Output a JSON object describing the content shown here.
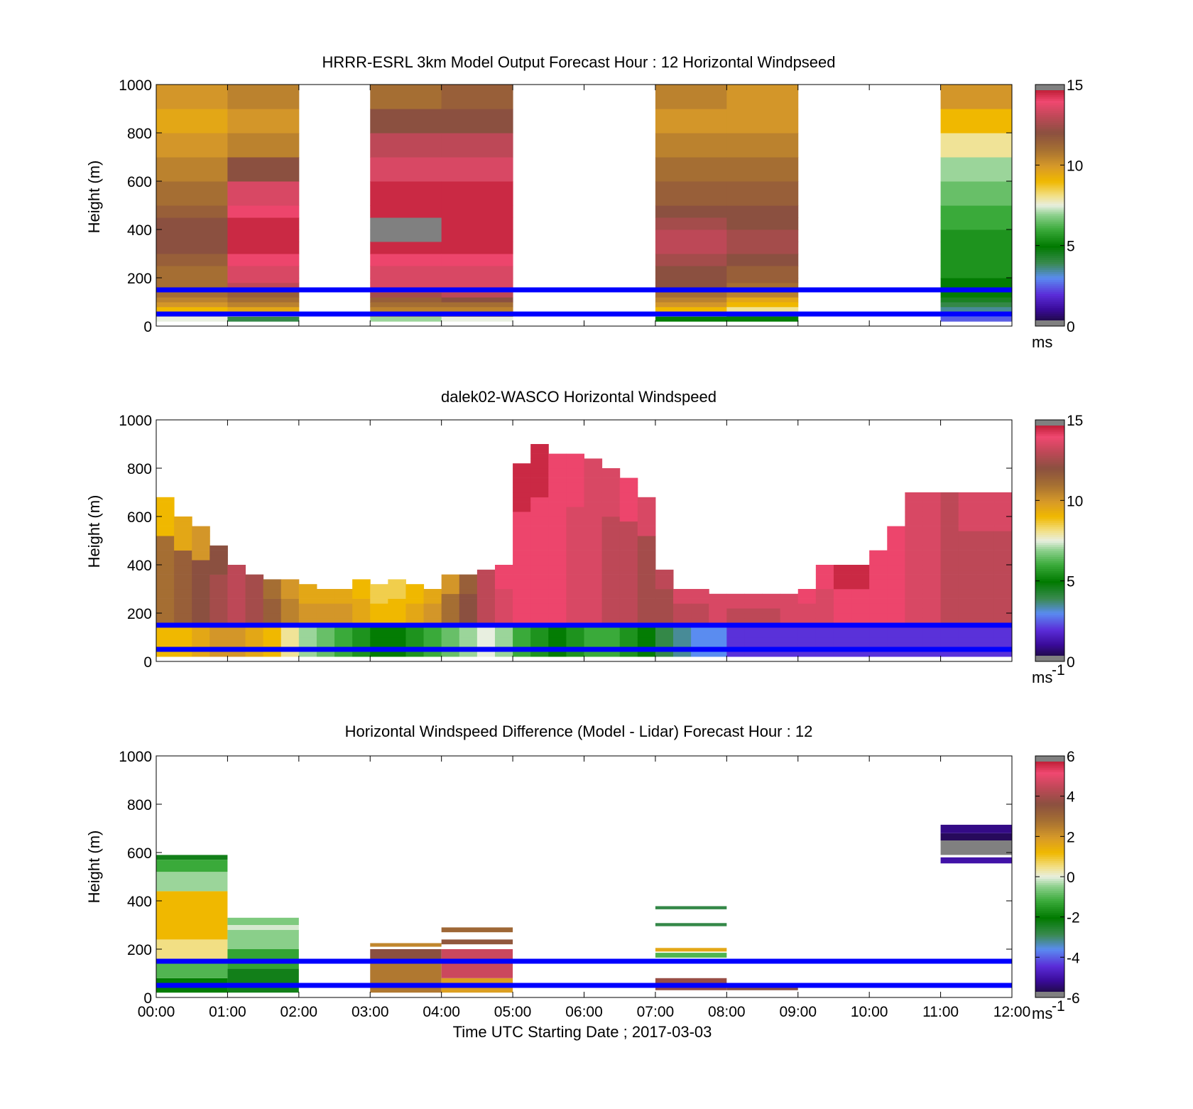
{
  "figure": {
    "xlabel": "Time UTC  Starting Date ; 2017-03-03",
    "xtick_labels": [
      "00:00",
      "01:00",
      "02:00",
      "03:00",
      "04:00",
      "05:00",
      "06:00",
      "07:00",
      "08:00",
      "09:00",
      "10:00",
      "11:00",
      "12:00"
    ],
    "reference_lines": {
      "color": "#0000ff",
      "heights_m": [
        150,
        50
      ]
    }
  },
  "chart_data": [
    {
      "type": "heatmap",
      "title": "HRRR-ESRL 3km Model Output   Forecast Hour : 12 Horizontal Windpseed",
      "ylabel": "Height (m)",
      "xlim_hours": [
        0,
        12
      ],
      "ylim": [
        0,
        1000
      ],
      "yticks": [
        0,
        200,
        400,
        600,
        800,
        1000
      ],
      "colorbar": {
        "min": 0,
        "max": 15,
        "ticks": [
          0,
          5,
          10,
          15
        ],
        "unit": "ms"
      },
      "level_heights_m": [
        20,
        40,
        60,
        80,
        100,
        120,
        140,
        160,
        180,
        200,
        250,
        300,
        350,
        400,
        450,
        500,
        600,
        700,
        800,
        900
      ],
      "columns": [
        {
          "start_hour": 0,
          "end_hour": 1,
          "values": [
            7.5,
            8,
            9,
            10,
            10.5,
            11,
            11,
            11,
            11,
            11,
            11.5,
            12,
            12,
            12,
            11.5,
            11,
            10.5,
            10,
            9.5,
            10
          ]
        },
        {
          "start_hour": 1,
          "end_hour": 2,
          "values": [
            4,
            8,
            9.5,
            10.5,
            11,
            11.5,
            12.5,
            13,
            13.5,
            13.5,
            14,
            14.5,
            14.5,
            14.5,
            14,
            13.5,
            12,
            10.5,
            10,
            10.5
          ]
        },
        {
          "start_hour": 3,
          "end_hour": 4,
          "values": [
            7,
            9,
            10.5,
            11,
            11.5,
            12.5,
            13.5,
            13.5,
            13.5,
            13.5,
            14,
            14.5,
            null,
            null,
            14.5,
            14.5,
            13.5,
            13,
            12,
            11
          ]
        },
        {
          "start_hour": 4,
          "end_hour": 5,
          "values": [
            7.5,
            9,
            10.5,
            11,
            12,
            13,
            13.5,
            13.5,
            13.5,
            13.5,
            14,
            14.5,
            14.5,
            14.5,
            14.5,
            14.5,
            13.5,
            13,
            12,
            11.5
          ]
        },
        {
          "start_hour": 7,
          "end_hour": 8,
          "values": [
            5,
            6.5,
            9,
            10,
            10.5,
            11,
            11.5,
            12,
            12,
            12,
            12.5,
            13,
            13,
            12.5,
            12,
            11.5,
            11,
            10.5,
            10,
            10.5
          ]
        },
        {
          "start_hour": 8,
          "end_hour": 9,
          "values": [
            5,
            5.5,
            8,
            9,
            9.5,
            10.5,
            11,
            11,
            11.5,
            11.5,
            12,
            12.5,
            12.5,
            12,
            12,
            11.5,
            11,
            10.5,
            10,
            10
          ]
        },
        {
          "start_hour": 11,
          "end_hour": 12,
          "values": [
            2.5,
            3,
            3.5,
            4,
            4.5,
            5,
            5,
            5,
            5,
            5.5,
            5.5,
            5.5,
            5.5,
            6,
            6,
            6.5,
            7,
            8,
            9,
            10
          ]
        }
      ]
    },
    {
      "type": "heatmap",
      "title": "dalek02-WASCO  Horizontal Windspeed",
      "ylabel": "Height (m)",
      "xlim_hours": [
        0,
        12
      ],
      "ylim": [
        0,
        1000
      ],
      "yticks": [
        0,
        200,
        400,
        600,
        800,
        1000
      ],
      "colorbar": {
        "min": 0,
        "max": 15,
        "ticks": [
          0,
          5,
          10,
          15
        ],
        "unit": "ms",
        "unit_superscript": "-1"
      },
      "column_width_hours": 0.25,
      "tops_m": [
        680,
        600,
        560,
        480,
        400,
        360,
        340,
        330,
        310,
        300,
        300,
        330,
        310,
        330,
        310,
        300,
        360,
        360,
        380,
        390,
        820,
        900,
        860,
        850,
        830,
        800,
        760,
        670,
        380,
        300,
        300,
        280,
        280,
        280,
        280,
        280,
        300,
        400,
        400,
        400,
        450,
        550,
        700,
        700,
        700,
        700,
        700,
        700
      ],
      "low_values": [
        9,
        9,
        9.5,
        10,
        10,
        9.5,
        9,
        8,
        7,
        6.5,
        6,
        5.5,
        5,
        5,
        5.5,
        6,
        6.5,
        7,
        7.5,
        7,
        6,
        5.5,
        5,
        5.5,
        6,
        6,
        5.5,
        5,
        4,
        3.5,
        3,
        3,
        2,
        2,
        2,
        2,
        2,
        2,
        2,
        2,
        2,
        2,
        2,
        2,
        2,
        2,
        2,
        2
      ],
      "mid_values": [
        11,
        11.5,
        12,
        12.5,
        13,
        12.5,
        11.5,
        10.5,
        10,
        10,
        10,
        9.5,
        9,
        9,
        9.5,
        10,
        11,
        12,
        13,
        13.5,
        14,
        14,
        14,
        13.5,
        13.5,
        13,
        13,
        12.5,
        12.5,
        13,
        13,
        13.5,
        13,
        13,
        13,
        13.5,
        13.5,
        13.5,
        14,
        14,
        14,
        14,
        13.5,
        13.5,
        13,
        13,
        13,
        13
      ],
      "upper_values": [
        9,
        9.5,
        10,
        12,
        13,
        12.5,
        11,
        10,
        9.5,
        9.5,
        9.5,
        9,
        8.5,
        8.5,
        9,
        9.5,
        10,
        11.5,
        13,
        14,
        14.5,
        14.5,
        14,
        14,
        13.5,
        13.5,
        14,
        13.5,
        13,
        13.5,
        13.5,
        13.5,
        13.5,
        13.5,
        13.5,
        13.5,
        14,
        14,
        14.5,
        14.5,
        14,
        14,
        13.5,
        13.5,
        13,
        13.5,
        13.5,
        13.5
      ]
    },
    {
      "type": "heatmap",
      "title": "Horizontal Windspeed Difference (Model - Lidar) Forecast Hour : 12",
      "ylabel": "Height (m)",
      "xlim_hours": [
        0,
        12
      ],
      "ylim": [
        0,
        1000
      ],
      "yticks": [
        0,
        200,
        400,
        600,
        800,
        1000
      ],
      "colorbar": {
        "min": -6,
        "max": 6,
        "ticks": [
          -6,
          -4,
          -2,
          0,
          2,
          4,
          6
        ],
        "unit": "ms",
        "unit_superscript": "-1"
      },
      "blocks": [
        {
          "start_hour": 0,
          "end_hour": 1,
          "bottom_m": 20,
          "top_m": 80,
          "value": -2
        },
        {
          "start_hour": 0,
          "end_hour": 1,
          "bottom_m": 80,
          "top_m": 160,
          "value": -1
        },
        {
          "start_hour": 0,
          "end_hour": 1,
          "bottom_m": 160,
          "top_m": 240,
          "value": 0.5
        },
        {
          "start_hour": 0,
          "end_hour": 1,
          "bottom_m": 240,
          "top_m": 440,
          "value": 1.2
        },
        {
          "start_hour": 0,
          "end_hour": 1,
          "bottom_m": 440,
          "top_m": 520,
          "value": -0.4
        },
        {
          "start_hour": 0,
          "end_hour": 1,
          "bottom_m": 520,
          "top_m": 570,
          "value": -1.2
        },
        {
          "start_hour": 0,
          "end_hour": 1,
          "bottom_m": 570,
          "top_m": 590,
          "value": -2.3
        },
        {
          "start_hour": 1,
          "end_hour": 2,
          "bottom_m": 20,
          "top_m": 120,
          "value": -2.3
        },
        {
          "start_hour": 1,
          "end_hour": 2,
          "bottom_m": 120,
          "top_m": 200,
          "value": -1.3
        },
        {
          "start_hour": 1,
          "end_hour": 2,
          "bottom_m": 200,
          "top_m": 280,
          "value": -0.5
        },
        {
          "start_hour": 1,
          "end_hour": 2,
          "bottom_m": 280,
          "top_m": 300,
          "value": -0.1
        },
        {
          "start_hour": 1,
          "end_hour": 2,
          "bottom_m": 300,
          "top_m": 330,
          "value": -0.6
        },
        {
          "start_hour": 3,
          "end_hour": 4,
          "bottom_m": 20,
          "top_m": 140,
          "value": 2.6
        },
        {
          "start_hour": 3,
          "end_hour": 4,
          "bottom_m": 160,
          "top_m": 200,
          "value": 3.6
        },
        {
          "start_hour": 3,
          "end_hour": 4,
          "bottom_m": 210,
          "top_m": 225,
          "value": 2.3
        },
        {
          "start_hour": 4,
          "end_hour": 5,
          "bottom_m": 20,
          "top_m": 80,
          "value": 1.8
        },
        {
          "start_hour": 4,
          "end_hour": 5,
          "bottom_m": 80,
          "top_m": 200,
          "value": 4.6
        },
        {
          "start_hour": 4,
          "end_hour": 5,
          "bottom_m": 220,
          "top_m": 240,
          "value": 3.4
        },
        {
          "start_hour": 4,
          "end_hour": 5,
          "bottom_m": 270,
          "top_m": 290,
          "value": 3
        },
        {
          "start_hour": 7,
          "end_hour": 8,
          "bottom_m": 30,
          "top_m": 80,
          "value": 3.8
        },
        {
          "start_hour": 7,
          "end_hour": 8,
          "bottom_m": 165,
          "top_m": 185,
          "value": -1
        },
        {
          "start_hour": 7,
          "end_hour": 8,
          "bottom_m": 190,
          "top_m": 205,
          "value": 1.6
        },
        {
          "start_hour": 7,
          "end_hour": 8,
          "bottom_m": 295,
          "top_m": 308,
          "value": -2.8
        },
        {
          "start_hour": 7,
          "end_hour": 8,
          "bottom_m": 365,
          "top_m": 378,
          "value": -2.8
        },
        {
          "start_hour": 8,
          "end_hour": 9,
          "bottom_m": 30,
          "top_m": 50,
          "value": 3.6
        },
        {
          "start_hour": 11,
          "end_hour": 12,
          "bottom_m": 555,
          "top_m": 580,
          "value": -5
        },
        {
          "start_hour": 11,
          "end_hour": 12,
          "bottom_m": 590,
          "top_m": 650,
          "value": null
        },
        {
          "start_hour": 11,
          "end_hour": 12,
          "bottom_m": 650,
          "top_m": 680,
          "value": -5.6
        },
        {
          "start_hour": 11,
          "end_hour": 12,
          "bottom_m": 680,
          "top_m": 715,
          "value": -5.3
        }
      ]
    }
  ]
}
